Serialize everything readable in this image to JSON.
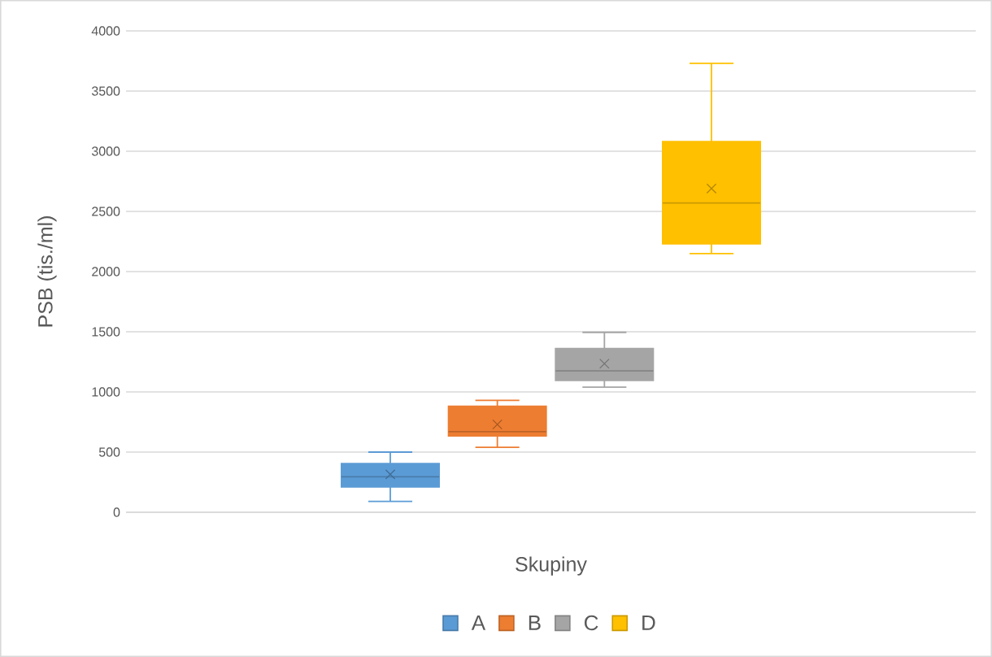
{
  "chart_data": {
    "type": "box",
    "xlabel": "Skupiny",
    "ylabel": "PSB (tis./ml)",
    "categories": [
      null
    ],
    "series": [
      {
        "name": "A",
        "color": "#5b9bd5",
        "boxes": [
          {
            "low": 90,
            "q1": 210,
            "median": 295,
            "q3": 405,
            "high": 500,
            "mean": 315
          }
        ]
      },
      {
        "name": "B",
        "color": "#ed7d31",
        "boxes": [
          {
            "low": 540,
            "q1": 635,
            "median": 670,
            "q3": 880,
            "high": 930,
            "mean": 730
          }
        ]
      },
      {
        "name": "C",
        "color": "#a5a5a5",
        "boxes": [
          {
            "low": 1040,
            "q1": 1095,
            "median": 1175,
            "q3": 1360,
            "high": 1495,
            "mean": 1235
          }
        ]
      },
      {
        "name": "D",
        "color": "#ffc000",
        "boxes": [
          {
            "low": 2150,
            "q1": 2230,
            "median": 2570,
            "q3": 3080,
            "high": 3730,
            "mean": 2690
          }
        ]
      }
    ],
    "ylim": [
      0,
      4000
    ],
    "yticks": [
      0,
      500,
      1000,
      1500,
      2000,
      2500,
      3000,
      3500,
      4000
    ],
    "grid": "y",
    "legend": "bottom",
    "marker": "cross"
  }
}
